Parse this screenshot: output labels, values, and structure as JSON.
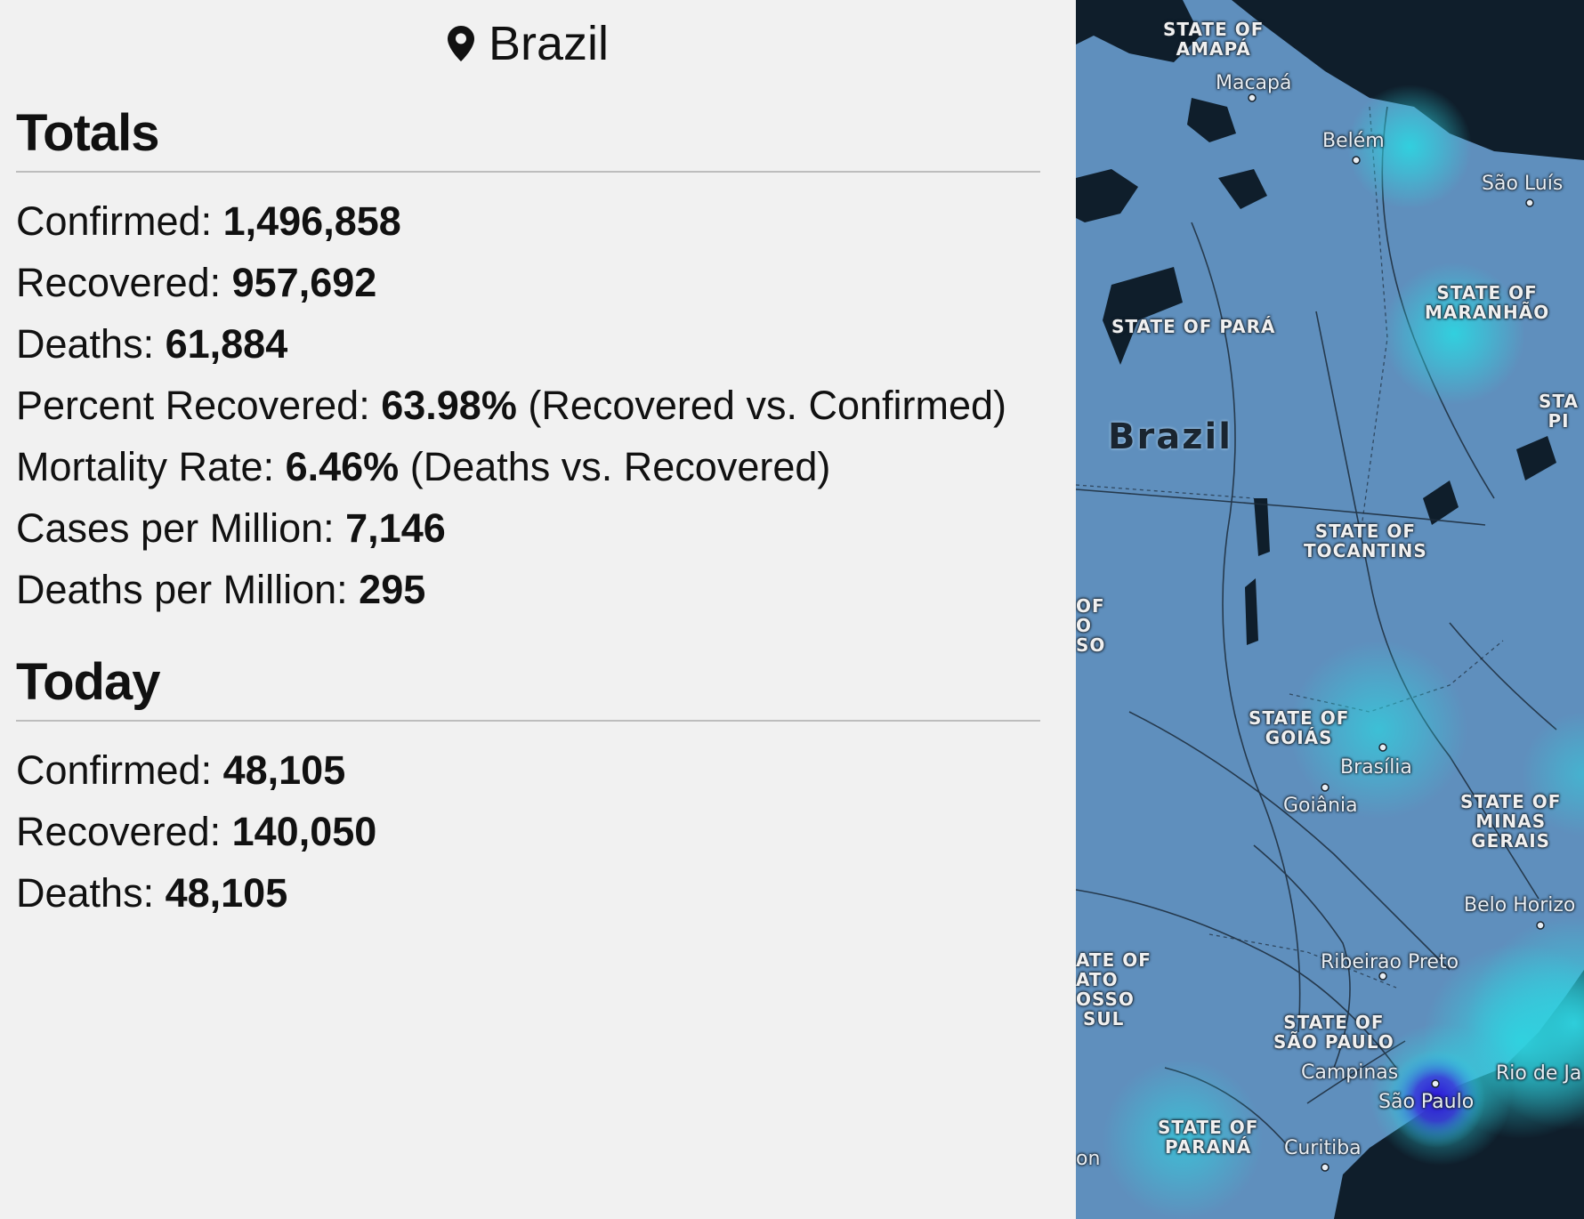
{
  "header": {
    "country": "Brazil",
    "icon": "map-pin-icon"
  },
  "totals": {
    "title": "Totals",
    "confirmed_label": "Confirmed: ",
    "confirmed_value": "1,496,858",
    "recovered_label": "Recovered: ",
    "recovered_value": "957,692",
    "deaths_label": "Deaths: ",
    "deaths_value": "61,884",
    "percent_recovered_label": "Percent Recovered: ",
    "percent_recovered_value": "63.98%",
    "percent_recovered_note": " (Recovered vs. Confirmed)",
    "mortality_label": "Mortality Rate: ",
    "mortality_value": "6.46%",
    "mortality_note": " (Deaths vs. Recovered)",
    "cases_per_million_label": "Cases per Million: ",
    "cases_per_million_value": "7,146",
    "deaths_per_million_label": "Deaths per Million: ",
    "deaths_per_million_value": "295"
  },
  "today": {
    "title": "Today",
    "confirmed_label": "Confirmed: ",
    "confirmed_value": "48,105",
    "recovered_label": "Recovered: ",
    "recovered_value": "140,050",
    "deaths_label": "Deaths: ",
    "deaths_value": "48,105"
  },
  "map": {
    "land_color": "#5f8fbd",
    "water_color": "#0f1e2b",
    "heat_color": "#2fd3e0",
    "hotspot_color": "#2a10d8",
    "country_label": "Brazil",
    "labels": {
      "amapa": "STATE OF\nAMAPÁ",
      "macapa": "Macapá",
      "belem": "Belém",
      "sao_luis": "São Luís",
      "para": "STATE OF PARÁ",
      "maranhao": "STATE OF\nMARANHÃO",
      "sta_edge": "STA\nPI",
      "tocantins": "STATE OF\nTOCANTINS",
      "mt_edge": "OF\nO\nSO",
      "goias": "STATE OF\nGOIÁS",
      "brasilia": "Brasília",
      "goiania": "Goiânia",
      "minas": "STATE OF\nMINAS\nGERAIS",
      "belo": "Belo Horizo",
      "ms_edge": "ATE OF\nATO\nOSSO\n SUL",
      "ribeirao": "Ribeirao Preto",
      "sao_paulo_state": "STATE OF\nSÃO PAULO",
      "campinas": "Campinas",
      "sao_paulo": "São Paulo",
      "rio": "Rio de Ja",
      "parana": "STATE OF\nPARANÁ",
      "curitiba": "Curitiba",
      "on_edge": "on"
    }
  }
}
